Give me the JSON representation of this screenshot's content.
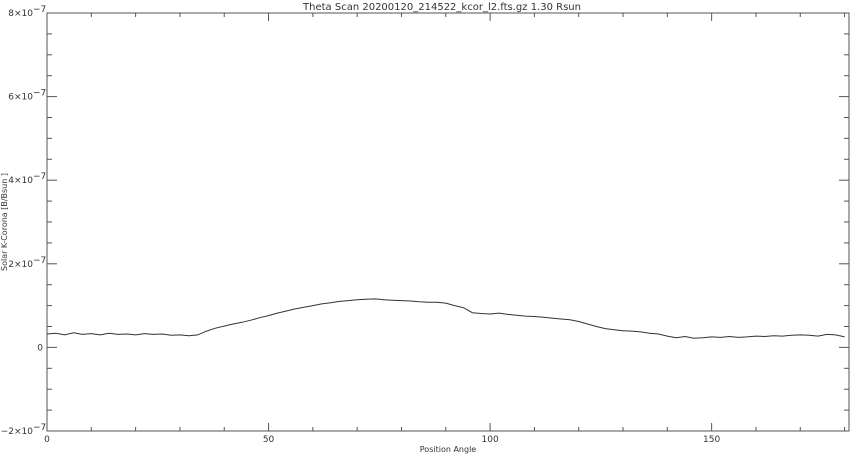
{
  "chart_data": {
    "type": "line",
    "title": "Theta Scan 20200120_214522_kcor_l2.fts.gz 1.30 Rsun",
    "xlabel": "Position Angle",
    "ylabel": "Solar K-Corona [B/Bsun ]",
    "xlim": [
      0,
      181
    ],
    "ylim": [
      -2e-07,
      8e-07
    ],
    "x_ticks": [
      0,
      50,
      100,
      150
    ],
    "x_tick_labels": [
      "0",
      "50",
      "100",
      "150"
    ],
    "y_ticks": [
      -2e-07,
      0,
      2e-07,
      4e-07,
      6e-07,
      8e-07
    ],
    "y_tick_labels": [
      "−2×10",
      "0",
      "2×10",
      "4×10",
      "6×10",
      "8×10"
    ],
    "y_tick_exponent": "−7",
    "grid": false,
    "series": [
      {
        "x": [
          0,
          2,
          4,
          6,
          8,
          10,
          12,
          14,
          16,
          18,
          20,
          22,
          24,
          26,
          28,
          30,
          32,
          34,
          36,
          38,
          40,
          42,
          44,
          46,
          48,
          50,
          52,
          54,
          56,
          58,
          60,
          62,
          64,
          66,
          68,
          70,
          72,
          74,
          76,
          78,
          80,
          82,
          84,
          86,
          88,
          90,
          92,
          94,
          96,
          98,
          100,
          102,
          104,
          106,
          108,
          110,
          112,
          114,
          116,
          118,
          120,
          122,
          124,
          126,
          128,
          130,
          132,
          134,
          136,
          138,
          140,
          142,
          144,
          146,
          148,
          150,
          152,
          154,
          156,
          158,
          160,
          162,
          164,
          166,
          168,
          170,
          172,
          174,
          176,
          178,
          180
        ],
        "y": [
          3.2e-08,
          3.4e-08,
          3e-08,
          3.5e-08,
          3.1e-08,
          3.3e-08,
          3e-08,
          3.4e-08,
          3.1e-08,
          3.2e-08,
          3e-08,
          3.3e-08,
          3.1e-08,
          3.2e-08,
          2.9e-08,
          3e-08,
          2.8e-08,
          3e-08,
          3.9e-08,
          4.6e-08,
          5.1e-08,
          5.6e-08,
          6e-08,
          6.5e-08,
          7.1e-08,
          7.6e-08,
          8.2e-08,
          8.7e-08,
          9.2e-08,
          9.6e-08,
          1e-07,
          1.04e-07,
          1.07e-07,
          1.1e-07,
          1.12e-07,
          1.14e-07,
          1.15e-07,
          1.16e-07,
          1.14e-07,
          1.13e-07,
          1.12e-07,
          1.11e-07,
          1.09e-07,
          1.08e-07,
          1.08e-07,
          1.06e-07,
          1e-07,
          9.5e-08,
          8.3e-08,
          8.1e-08,
          8e-08,
          8.2e-08,
          7.9e-08,
          7.7e-08,
          7.5e-08,
          7.4e-08,
          7.2e-08,
          7e-08,
          6.8e-08,
          6.6e-08,
          6.2e-08,
          5.6e-08,
          5e-08,
          4.5e-08,
          4.2e-08,
          4e-08,
          3.9e-08,
          3.7e-08,
          3.4e-08,
          3.2e-08,
          2.7e-08,
          2.3e-08,
          2.6e-08,
          2.2e-08,
          2.3e-08,
          2.5e-08,
          2.4e-08,
          2.6e-08,
          2.4e-08,
          2.5e-08,
          2.7e-08,
          2.6e-08,
          2.8e-08,
          2.7e-08,
          2.9e-08,
          3e-08,
          2.9e-08,
          2.7e-08,
          3.1e-08,
          3e-08,
          2.5e-08
        ]
      }
    ]
  }
}
